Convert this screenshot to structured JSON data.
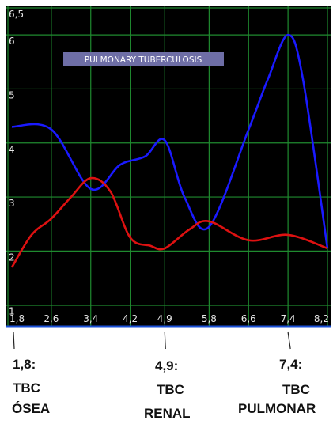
{
  "chart_data": {
    "type": "line",
    "title": "",
    "xlabel": "",
    "ylabel": "",
    "inner_label": "PULMONARY TUBERCULOSIS",
    "ylim": [
      0.6,
      6.5
    ],
    "yticks": [
      "6,5",
      "6",
      "5",
      "4",
      "3",
      "2",
      "1"
    ],
    "ytick_values": [
      6.5,
      6,
      5,
      4,
      3,
      2,
      1
    ],
    "xlim": [
      1.8,
      8.2
    ],
    "xticks": [
      "1,8",
      "2,6",
      "3,4",
      "4,2",
      "4,9",
      "5,8",
      "6,6",
      "7,4",
      "8,2"
    ],
    "xtick_values": [
      1.8,
      2.6,
      3.4,
      4.2,
      4.9,
      5.8,
      6.6,
      7.4,
      8.2
    ],
    "grid": true,
    "colors": {
      "background": "#000000",
      "grid": "#1f8a2f",
      "text": "#e6e6e6",
      "baseline": "#1a4fd6",
      "label_bg": "#6e6ea6"
    },
    "series": [
      {
        "color": "#1a1aff",
        "x": [
          1.8,
          2.6,
          3.4,
          4.0,
          4.5,
          4.9,
          5.3,
          5.8,
          6.6,
          7.0,
          7.4,
          7.7,
          8.2
        ],
        "y": [
          4.3,
          4.25,
          3.15,
          3.6,
          3.75,
          4.05,
          3.0,
          2.45,
          4.25,
          5.2,
          6.0,
          5.2,
          2.05
        ]
      },
      {
        "color": "#dd1111",
        "x": [
          1.8,
          2.2,
          2.6,
          3.0,
          3.4,
          3.8,
          4.2,
          4.6,
          4.9,
          5.4,
          5.8,
          6.6,
          7.4,
          8.2
        ],
        "y": [
          1.7,
          2.3,
          2.6,
          3.0,
          3.35,
          3.1,
          2.25,
          2.1,
          2.05,
          2.4,
          2.55,
          2.2,
          2.3,
          2.05
        ]
      }
    ]
  },
  "annotations": [
    {
      "value": "1,8:",
      "line1": "TBC",
      "line2": "ÓSEA"
    },
    {
      "value": "4,9:",
      "line1": "TBC",
      "line2": "RENAL"
    },
    {
      "value": "7,4:",
      "line1": "TBC",
      "line2": "PULMONAR"
    }
  ]
}
